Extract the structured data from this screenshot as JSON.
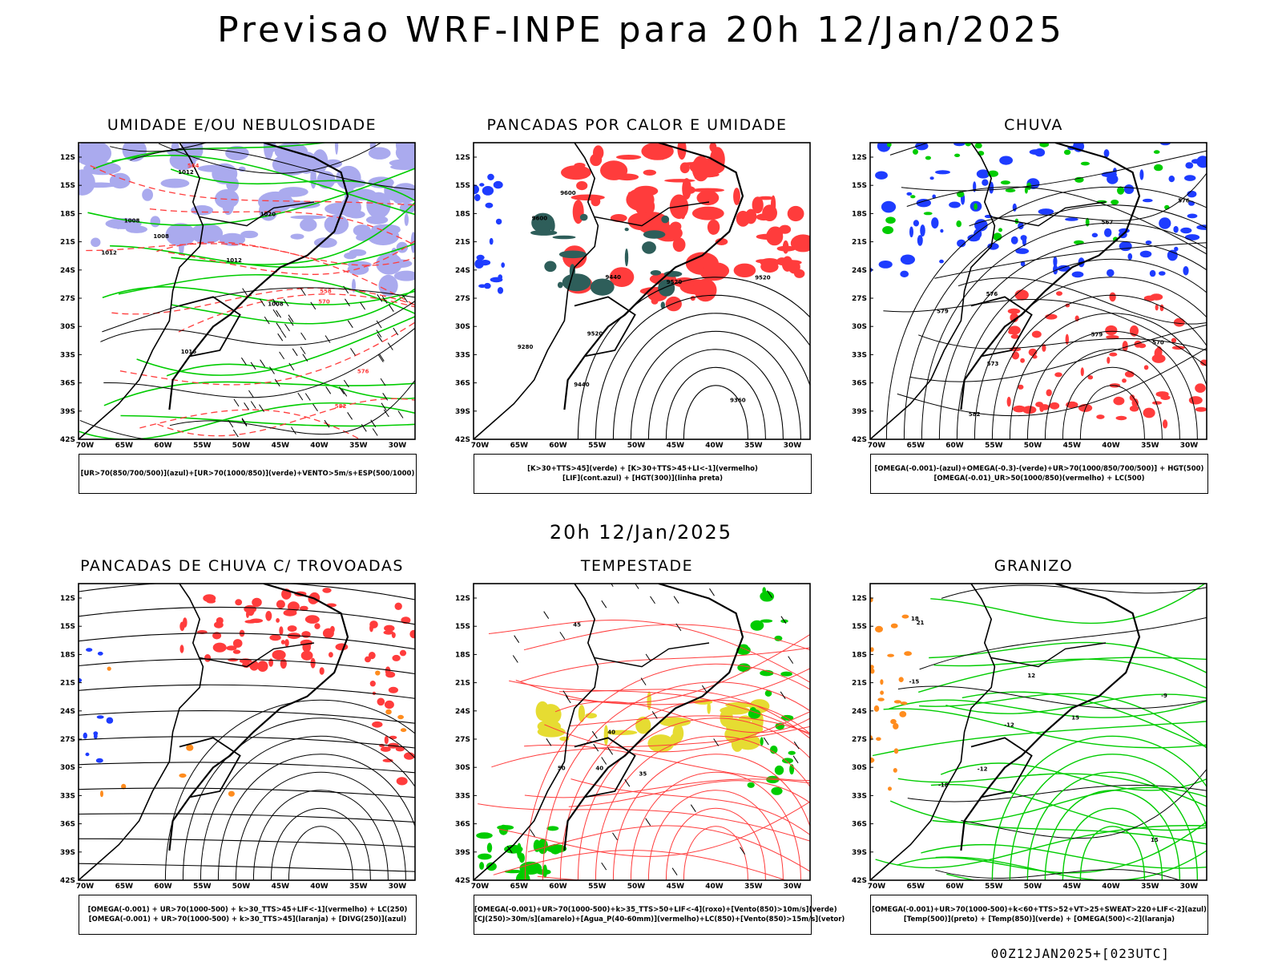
{
  "header": {
    "title": "Previsao WRF-INPE  para 20h 12/Jan/2025",
    "subtitle": "20h 12/Jan/2025",
    "footer": "00Z12JAN2025+[023UTC]"
  },
  "axes": {
    "x_labels": [
      "70W",
      "65W",
      "60W",
      "55W",
      "50W",
      "45W",
      "40W",
      "35W",
      "30W"
    ],
    "y_labels": [
      "12S",
      "15S",
      "18S",
      "21S",
      "24S",
      "27S",
      "30S",
      "33S",
      "36S",
      "39S",
      "42S"
    ]
  },
  "colors": {
    "blue_shade": "#aaaaee",
    "blue": "#1e3cff",
    "green": "#00cc00",
    "red": "#ff3c3c",
    "dark_teal": "#2e5e5a",
    "yellow": "#e6dc32",
    "orange": "#ff8c1e"
  },
  "panels": [
    {
      "id": "umidade",
      "title": "UMIDADE E/OU NEBULOSIDADE",
      "legend": [
        "[UR>70(850/700/500)](azul)+[UR>70(1000/850)](verde)+VENTO>5m/s+ESP(500/1000)"
      ],
      "contour_labels": [
        "1008",
        "1008",
        "1012",
        "1012",
        "1016",
        "1020",
        "1012",
        "1008",
        "576",
        "570",
        "564",
        "558",
        "582"
      ]
    },
    {
      "id": "pancadas-calor",
      "title": "PANCADAS POR CALOR E UMIDADE",
      "legend": [
        "[K>30+TTS>45](verde)  +  [K>30+TTS>45+LI<-1](vermelho)",
        "[LIF](cont.azul)  +  [HGT(300)](linha preta)"
      ],
      "contour_labels": [
        "9600",
        "9520",
        "9440",
        "9360",
        "9280",
        "9600",
        "9520",
        "9440",
        "9520"
      ]
    },
    {
      "id": "chuva",
      "title": "CHUVA",
      "legend": [
        "[OMEGA(-0.001)-(azul)+OMEGA(-0.3)-(verde)+UR>70(1000/850/700/500)]  +  HGT(500)",
        "[OMEGA(-0.01)_UR>50(1000/850)(vermelho)  +  LC(500)"
      ],
      "contour_labels": [
        "582",
        "579",
        "576",
        "573",
        "570",
        "567",
        "579",
        "576"
      ]
    },
    {
      "id": "trovoadas",
      "title": "PANCADAS DE CHUVA C/ TROVOADAS",
      "legend": [
        "[OMEGA(-0.001)  +  UR>70(1000-500)  +  k>30_TTS>45+LIF<-1](vermelho)  +  LC(250)",
        "[OMEGA(-0.001)  +  UR>70(1000-500)  +  k>30_TTS>45](laranja)  +  [DIVG(250)](azul)"
      ],
      "contour_labels": []
    },
    {
      "id": "tempestade",
      "title": "TEMPESTADE",
      "legend": [
        "[OMEGA(-0.001)+UR>70(1000-500)+k>35_TTS>50+LIF<-4](roxo)+[Vento(850)>10m/s](verde)",
        "[CJ(250)>30m/s](amarelo)+[Agua_P(40-60mm)](vermelho)+LC(850)+[Vento(850)>15m/s](vetor)"
      ],
      "contour_labels": [
        "40",
        "45",
        "50",
        "40",
        "35"
      ]
    },
    {
      "id": "granizo",
      "title": "GRANIZO",
      "legend": [
        "[OMEGA(-0.001)+UR>70(1000-500)+k<60+TTS>52+VT>25+SWEAT>220+LIF<-2](azul)",
        "[Temp(500)](preto)  +  [Temp(850)](verde)  +  [OMEGA(500)<-2](laranja)"
      ],
      "contour_labels": [
        "-12",
        "-15",
        "-18",
        "-9",
        "-12",
        "12",
        "15",
        "18",
        "21",
        "15"
      ]
    }
  ]
}
